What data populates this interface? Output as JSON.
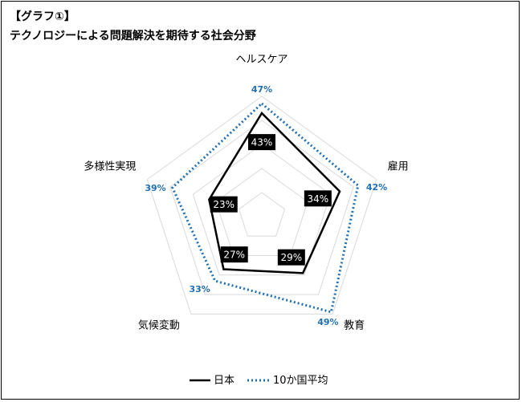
{
  "header": {
    "label": "【グラフ①】",
    "title": "テクノロジーによる問題解決を期待する社会分野"
  },
  "chart_data": {
    "type": "radar",
    "categories": [
      "ヘルスケア",
      "雇用",
      "教育",
      "気候変動",
      "多様性実現"
    ],
    "series": [
      {
        "name": "日本",
        "values": [
          43,
          34,
          29,
          27,
          23
        ],
        "color": "#000000",
        "style": "solid"
      },
      {
        "name": "10か国平均",
        "values": [
          47,
          42,
          49,
          33,
          39
        ],
        "color": "#1f6fb3",
        "style": "dotted"
      }
    ],
    "value_labels": {
      "日本": [
        "43%",
        "34%",
        "29%",
        "27%",
        "23%"
      ],
      "10か国平均": [
        "47%",
        "42%",
        "49%",
        "33%",
        "39%"
      ]
    },
    "rlim": [
      0,
      50
    ],
    "grid_rings": 5,
    "legend": "bottom"
  }
}
